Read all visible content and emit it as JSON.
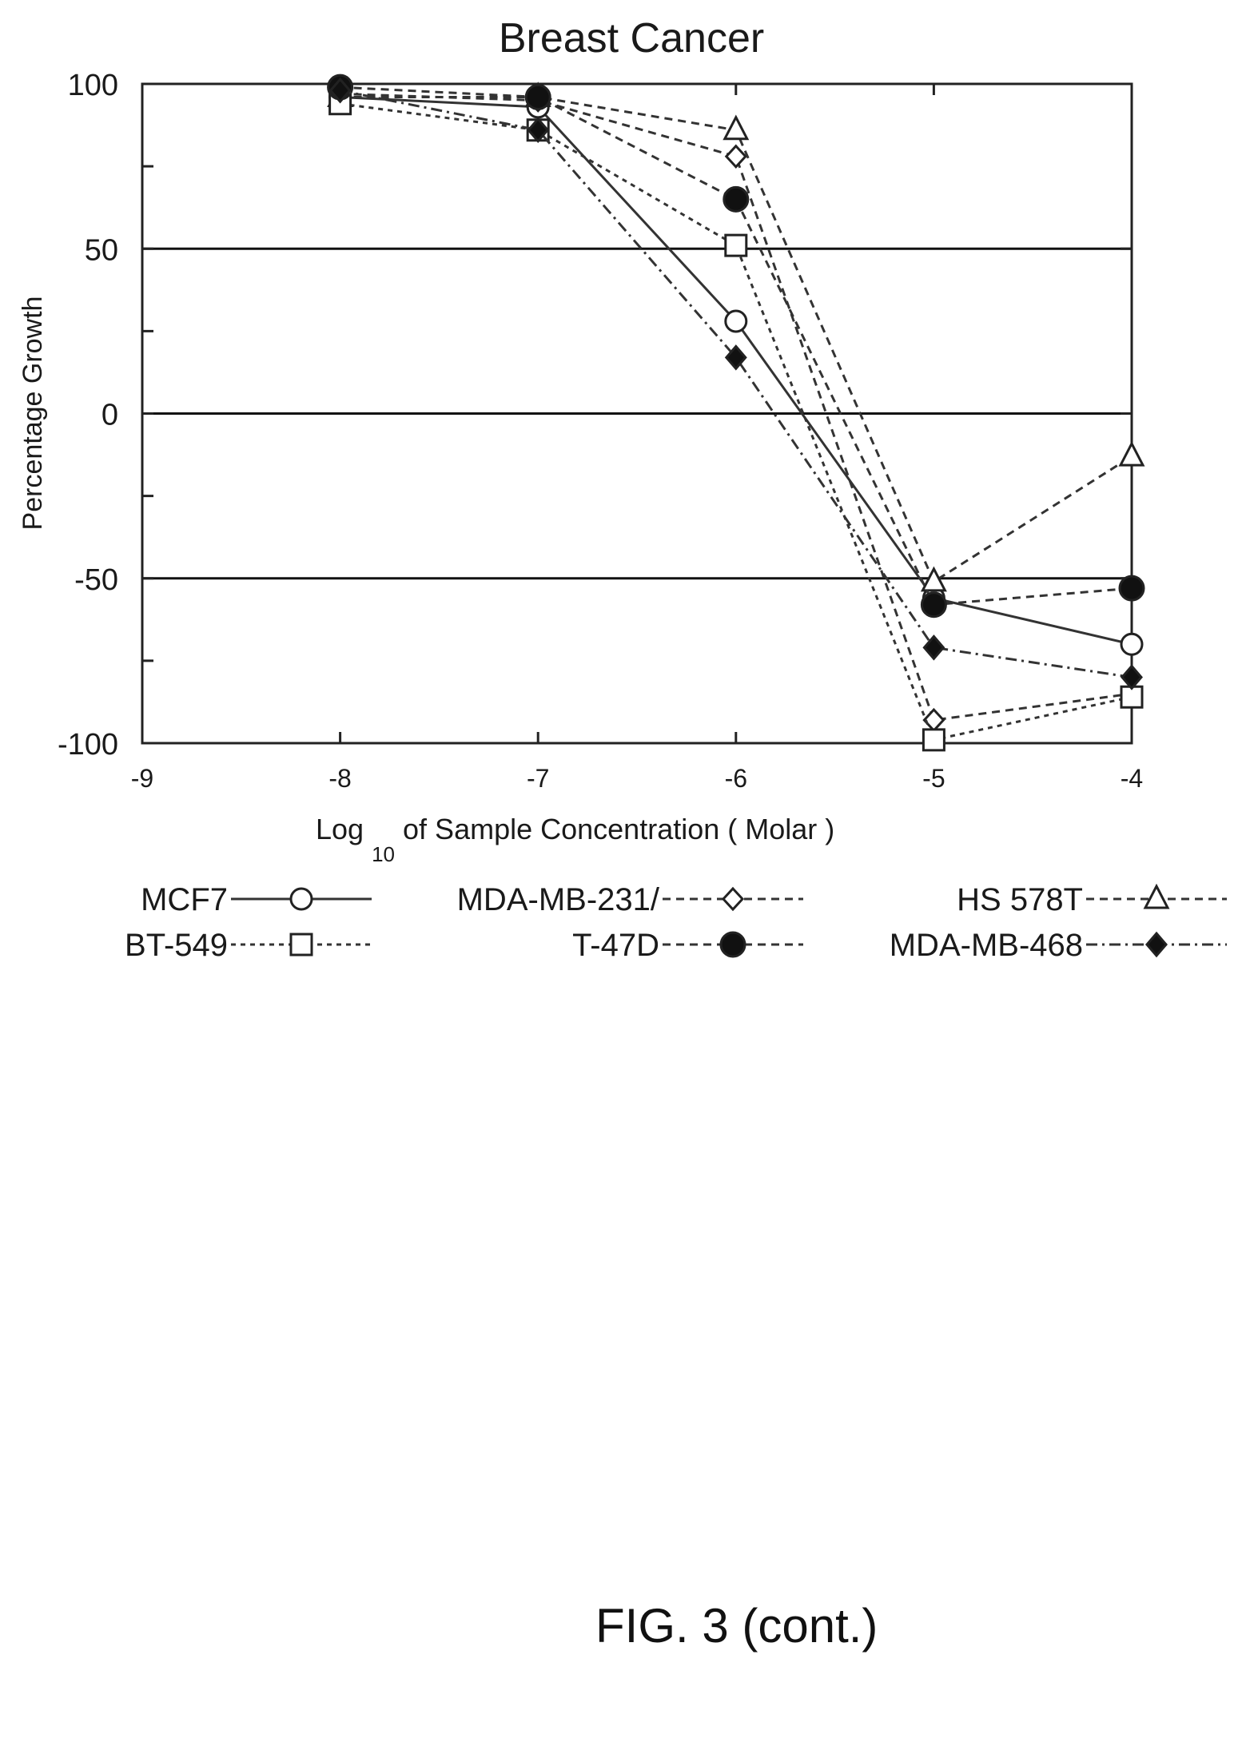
{
  "figure_caption": "FIG. 3 (cont.)",
  "chart_data": {
    "type": "line",
    "title": "Breast Cancer",
    "xlabel": "Log10 of Sample Concentration ( Molar )",
    "xlabel_parts": {
      "main": "Log",
      "sub": "10",
      "rest": " of Sample Concentration ( Molar )"
    },
    "ylabel": "Percentage Growth",
    "xlim": [
      -9,
      -4
    ],
    "ylim": [
      -100,
      100
    ],
    "x_ticks": [
      "-9",
      "-8",
      "-7",
      "-6",
      "-5",
      "-4"
    ],
    "y_ticks": [
      "100",
      "50",
      "0",
      "-50",
      "-100"
    ],
    "reference_lines": [
      50,
      0,
      -50
    ],
    "legend_position": "bottom",
    "x": [
      -8,
      -7,
      -6,
      -5,
      -4
    ],
    "series": [
      {
        "name": "MCF7",
        "marker": "open-circle",
        "dash": "solid",
        "values": [
          96,
          93,
          28,
          -56,
          -70
        ]
      },
      {
        "name": "MDA-MB-231/",
        "marker": "open-diamond",
        "dash": "dashed",
        "values": [
          97,
          95,
          78,
          -93,
          -85
        ]
      },
      {
        "name": "HS 578T",
        "marker": "open-triangle",
        "dash": "dashed",
        "values": [
          96,
          96,
          86,
          -51,
          -13
        ]
      },
      {
        "name": "BT-549",
        "marker": "open-square",
        "dash": "dotted-dash",
        "values": [
          94,
          86,
          51,
          -99,
          -86
        ]
      },
      {
        "name": "T-47D",
        "marker": "filled-circle",
        "dash": "dashed",
        "values": [
          99,
          96,
          65,
          -58,
          -53
        ]
      },
      {
        "name": "MDA-MB-468",
        "marker": "filled-diamond",
        "dash": "dash-dot",
        "values": [
          98,
          86,
          17,
          -71,
          -80
        ]
      }
    ]
  }
}
